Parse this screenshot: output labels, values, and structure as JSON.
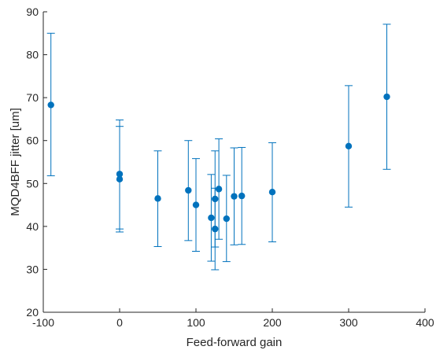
{
  "chart_data": {
    "type": "scatter",
    "title": "",
    "xlabel": "Feed-forward gain",
    "ylabel": "MQD4BFF jitter [um]",
    "xlim": [
      -100,
      400
    ],
    "ylim": [
      20,
      90
    ],
    "xticks": [
      -100,
      0,
      100,
      200,
      300,
      400
    ],
    "yticks": [
      20,
      30,
      40,
      50,
      60,
      70,
      80,
      90
    ],
    "xtick_labels": [
      "-100",
      "0",
      "100",
      "200",
      "300",
      "400"
    ],
    "ytick_labels": [
      "20",
      "30",
      "40",
      "50",
      "60",
      "70",
      "80",
      "90"
    ],
    "grid": false,
    "colors": {
      "marker": "#0072BD",
      "axis": "#262626"
    },
    "series": [
      {
        "points": [
          {
            "x": -90,
            "y": 68.3,
            "lo": 51.8,
            "hi": 85.0
          },
          {
            "x": 0,
            "y": 52.2,
            "lo": 39.4,
            "hi": 64.8
          },
          {
            "x": 0,
            "y": 51.0,
            "lo": 38.7,
            "hi": 63.3
          },
          {
            "x": 50,
            "y": 46.5,
            "lo": 35.3,
            "hi": 57.6
          },
          {
            "x": 90,
            "y": 48.4,
            "lo": 36.7,
            "hi": 60.0
          },
          {
            "x": 100,
            "y": 45.0,
            "lo": 34.2,
            "hi": 55.8
          },
          {
            "x": 120,
            "y": 42.0,
            "lo": 31.9,
            "hi": 52.1
          },
          {
            "x": 125,
            "y": 46.4,
            "lo": 35.2,
            "hi": 57.6
          },
          {
            "x": 125,
            "y": 39.4,
            "lo": 29.9,
            "hi": 48.9
          },
          {
            "x": 130,
            "y": 48.7,
            "lo": 37.0,
            "hi": 60.4
          },
          {
            "x": 140,
            "y": 41.8,
            "lo": 31.8,
            "hi": 51.9
          },
          {
            "x": 150,
            "y": 47.0,
            "lo": 35.7,
            "hi": 58.3
          },
          {
            "x": 160,
            "y": 47.1,
            "lo": 35.8,
            "hi": 58.4
          },
          {
            "x": 200,
            "y": 48.0,
            "lo": 36.4,
            "hi": 59.5
          },
          {
            "x": 300,
            "y": 58.7,
            "lo": 44.5,
            "hi": 72.8
          },
          {
            "x": 350,
            "y": 70.2,
            "lo": 53.3,
            "hi": 87.1
          }
        ]
      }
    ]
  }
}
